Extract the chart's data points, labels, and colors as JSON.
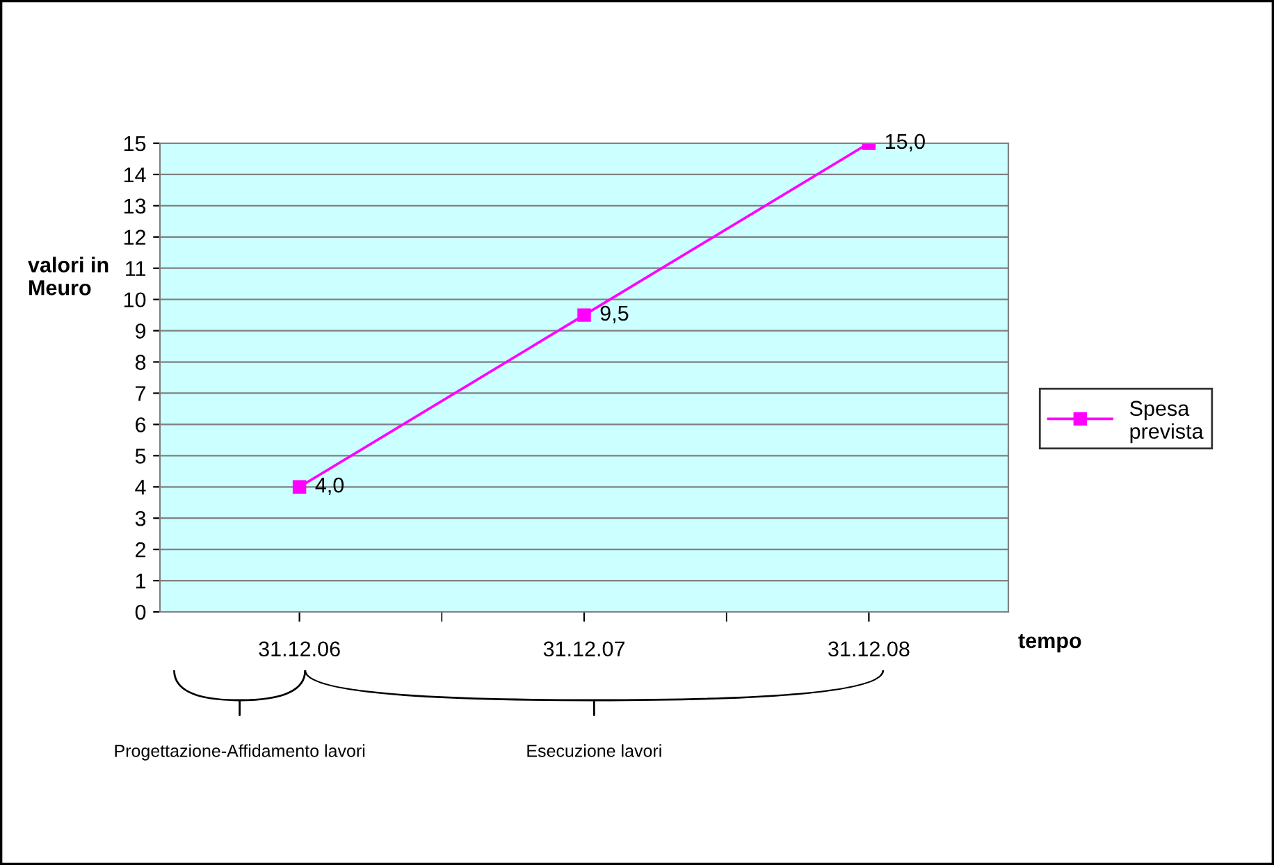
{
  "chart_data": {
    "type": "line",
    "ylabel": "valori in Meuro",
    "xlabel": "tempo",
    "categories": [
      "31.12.06",
      "31.12.07",
      "31.12.08"
    ],
    "series": [
      {
        "name": "Spesa prevista",
        "color": "#ff00ff",
        "values": [
          4.0,
          9.5,
          15.0
        ],
        "value_labels": [
          "4,0",
          "9,5",
          "15,0"
        ]
      }
    ],
    "ylim": [
      0,
      15
    ],
    "yticks": [
      0,
      1,
      2,
      3,
      4,
      5,
      6,
      7,
      8,
      9,
      10,
      11,
      12,
      13,
      14,
      15
    ],
    "grid": "y",
    "legend": "right",
    "marker": "square",
    "line_style": "solid",
    "annotations": [
      "Progettazione-Affidamento lavori",
      "Esecuzione lavori"
    ]
  }
}
